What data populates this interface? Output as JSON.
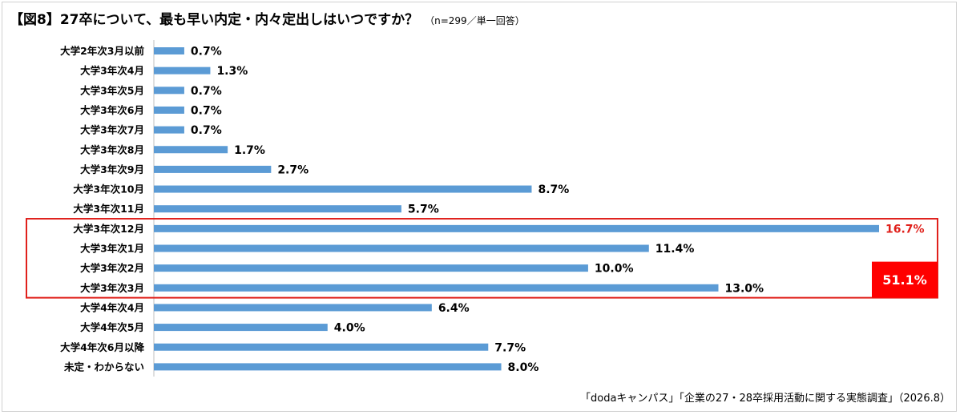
{
  "header": {
    "title": "【図8】27卒について、最も早い内定・内々定出しはいつですか？",
    "note": "（n=299／単一回答）"
  },
  "chart_data": {
    "type": "bar",
    "orientation": "horizontal",
    "categories": [
      "大学2年次3月以前",
      "大学3年次4月",
      "大学3年次5月",
      "大学3年次6月",
      "大学3年次7月",
      "大学3年次8月",
      "大学3年次9月",
      "大学3年次10月",
      "大学3年次11月",
      "大学3年次12月",
      "大学3年次1月",
      "大学3年次2月",
      "大学3年次3月",
      "大学4年次4月",
      "大学4年次5月",
      "大学4年次6月以降",
      "未定・わからない"
    ],
    "values": [
      0.7,
      1.3,
      0.7,
      0.7,
      0.7,
      1.7,
      2.7,
      8.7,
      5.7,
      16.7,
      11.4,
      10.0,
      13.0,
      6.4,
      4.0,
      7.7,
      8.0
    ],
    "value_labels": [
      "0.7%",
      "1.3%",
      "0.7%",
      "0.7%",
      "0.7%",
      "1.7%",
      "2.7%",
      "8.7%",
      "5.7%",
      "16.7%",
      "11.4%",
      "10.0%",
      "13.0%",
      "6.4%",
      "4.0%",
      "7.7%",
      "8.0%"
    ],
    "highlight_range": [
      9,
      12
    ],
    "highlight_total_label": "51.1%",
    "highlight_value_index": 9,
    "bar_color": "#5b9bd5",
    "highlight_color": "#ff0000",
    "xlim": [
      0,
      16.7
    ],
    "grid": false
  },
  "footer": {
    "source": "「dodaキャンパス」「企業の27・28卒採用活動に関する実態調査」（2026.8）"
  }
}
